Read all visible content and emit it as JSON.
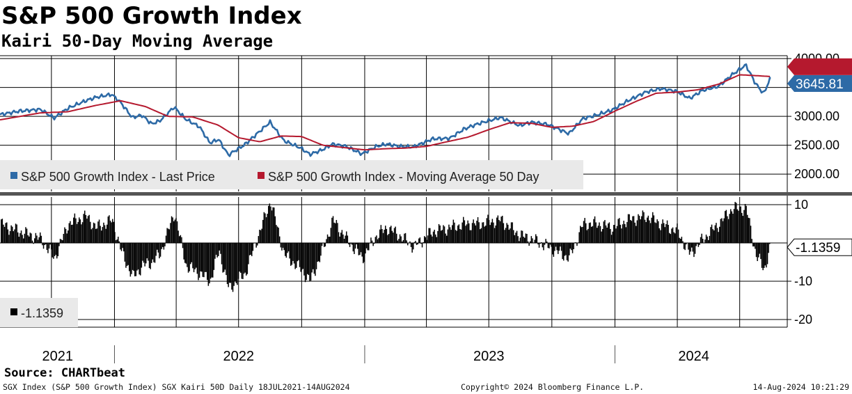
{
  "header": {
    "title": "S&P 500 Growth Index",
    "subtitle": "Kairi 50-Day Moving Average"
  },
  "footer": {
    "source": "Source: CHARTbeat",
    "left": "SGX Index (S&P 500 Growth Index) SGX Kairi 50D  Daily 18JUL2021-14AUG2024",
    "center": "Copyright© 2024 Bloomberg Finance L.P.",
    "right": "14-Aug-2024 10:21:29"
  },
  "colors": {
    "price": "#2d6aa6",
    "moving_average": "#b5192e",
    "kairi": "#000000",
    "legend_bg": "#e9e9e9",
    "separator": "#555555"
  },
  "chart_data": [
    {
      "type": "line",
      "panel": "price",
      "x_axis": {
        "type": "date",
        "range": [
          "2021-07-18",
          "2024-08-14"
        ],
        "tick_labels": [
          "2021",
          "2022",
          "2023",
          "2024"
        ]
      },
      "ylim": [
        1700,
        4050
      ],
      "yticks": [
        2000,
        2500,
        3000,
        3500,
        4000
      ],
      "ytick_labels": [
        "2000.00",
        "2500.00",
        "3000.00",
        "3500.00",
        "4000.00"
      ],
      "grid": true,
      "legend_position": "bottom-left",
      "last_value_label": "3645.81",
      "series": [
        {
          "name": "S&P 500 Growth Index - Last Price",
          "color": "#2d6aa6",
          "x": [
            "2021-07-18",
            "2021-08-15",
            "2021-09-15",
            "2021-10-05",
            "2021-10-25",
            "2021-11-20",
            "2021-12-05",
            "2021-12-28",
            "2022-01-10",
            "2022-01-27",
            "2022-02-10",
            "2022-02-24",
            "2022-03-08",
            "2022-03-29",
            "2022-04-15",
            "2022-05-05",
            "2022-05-20",
            "2022-06-02",
            "2022-06-16",
            "2022-07-10",
            "2022-08-16",
            "2022-09-05",
            "2022-09-30",
            "2022-10-13",
            "2022-10-31",
            "2022-11-15",
            "2022-12-05",
            "2022-12-28",
            "2023-01-18",
            "2023-02-02",
            "2023-02-20",
            "2023-03-13",
            "2023-04-10",
            "2023-05-05",
            "2023-05-26",
            "2023-06-15",
            "2023-07-18",
            "2023-08-15",
            "2023-09-01",
            "2023-09-25",
            "2023-10-26",
            "2023-11-15",
            "2023-12-05",
            "2023-12-28",
            "2024-01-20",
            "2024-02-15",
            "2024-03-08",
            "2024-04-01",
            "2024-04-19",
            "2024-05-08",
            "2024-05-31",
            "2024-06-20",
            "2024-07-10",
            "2024-07-24",
            "2024-08-05",
            "2024-08-14"
          ],
          "y": [
            3030,
            3090,
            3120,
            2970,
            3140,
            3270,
            3330,
            3380,
            3240,
            2980,
            3020,
            2870,
            2920,
            3160,
            2950,
            2820,
            2540,
            2600,
            2330,
            2510,
            2900,
            2580,
            2450,
            2340,
            2420,
            2520,
            2480,
            2350,
            2480,
            2520,
            2480,
            2470,
            2610,
            2620,
            2780,
            2870,
            2980,
            2840,
            2900,
            2860,
            2700,
            2960,
            3020,
            3110,
            3270,
            3420,
            3480,
            3430,
            3310,
            3450,
            3520,
            3720,
            3890,
            3570,
            3390,
            3645.81
          ]
        },
        {
          "name": "S&P 500 Growth Index - Moving Average 50 Day",
          "color": "#b5192e",
          "x": [
            "2021-07-18",
            "2021-09-15",
            "2021-10-25",
            "2021-12-05",
            "2022-01-10",
            "2022-02-15",
            "2022-03-20",
            "2022-04-25",
            "2022-06-01",
            "2022-07-01",
            "2022-08-01",
            "2022-09-01",
            "2022-10-01",
            "2022-11-01",
            "2022-12-01",
            "2023-01-01",
            "2023-02-01",
            "2023-03-01",
            "2023-04-01",
            "2023-05-01",
            "2023-06-01",
            "2023-07-01",
            "2023-08-01",
            "2023-09-01",
            "2023-10-01",
            "2023-11-01",
            "2023-12-01",
            "2024-01-01",
            "2024-02-01",
            "2024-03-01",
            "2024-04-01",
            "2024-05-01",
            "2024-06-01",
            "2024-07-01",
            "2024-08-01",
            "2024-08-14"
          ],
          "y": [
            2940,
            3060,
            3080,
            3190,
            3270,
            3170,
            3000,
            2990,
            2850,
            2630,
            2560,
            2660,
            2650,
            2500,
            2460,
            2420,
            2440,
            2450,
            2480,
            2560,
            2640,
            2770,
            2890,
            2880,
            2810,
            2830,
            2910,
            3090,
            3260,
            3400,
            3420,
            3460,
            3560,
            3720,
            3700,
            3690
          ]
        }
      ]
    },
    {
      "type": "bar",
      "panel": "kairi",
      "x_axis": {
        "type": "date",
        "range": [
          "2021-07-18",
          "2024-08-14"
        ],
        "tick_labels": [
          "2021",
          "2022",
          "2023",
          "2024"
        ]
      },
      "ylim": [
        -22,
        12
      ],
      "yticks": [
        10,
        -10,
        -20
      ],
      "ytick_labels": [
        "10",
        "-10",
        "-20"
      ],
      "grid": true,
      "legend_position": "bottom-left",
      "last_value_label": "-1.1359",
      "series": [
        {
          "name": "-1.1359",
          "color": "#000000",
          "x": [
            "2021-07-18",
            "2021-08-15",
            "2021-09-15",
            "2021-10-05",
            "2021-10-25",
            "2021-11-20",
            "2021-12-05",
            "2021-12-28",
            "2022-01-10",
            "2022-01-27",
            "2022-02-10",
            "2022-02-24",
            "2022-03-08",
            "2022-03-29",
            "2022-04-15",
            "2022-05-05",
            "2022-05-20",
            "2022-06-02",
            "2022-06-16",
            "2022-07-10",
            "2022-08-16",
            "2022-09-05",
            "2022-09-30",
            "2022-10-13",
            "2022-10-31",
            "2022-11-15",
            "2022-12-05",
            "2022-12-28",
            "2023-01-18",
            "2023-02-02",
            "2023-02-20",
            "2023-03-13",
            "2023-04-10",
            "2023-05-05",
            "2023-05-26",
            "2023-06-15",
            "2023-07-18",
            "2023-08-15",
            "2023-09-01",
            "2023-09-25",
            "2023-10-26",
            "2023-11-15",
            "2023-12-05",
            "2023-12-28",
            "2024-01-20",
            "2024-02-15",
            "2024-03-08",
            "2024-04-01",
            "2024-04-19",
            "2024-05-08",
            "2024-05-31",
            "2024-06-20",
            "2024-07-10",
            "2024-07-24",
            "2024-08-05",
            "2024-08-14"
          ],
          "y": [
            5,
            3,
            1,
            -4,
            5,
            7,
            4,
            6,
            -2,
            -9,
            -6,
            -5,
            -3,
            8,
            -6,
            -8,
            -10,
            -2,
            -12,
            -8,
            11,
            -3,
            -7,
            -10,
            -2,
            6,
            1,
            -4,
            2,
            4,
            2,
            -1,
            3,
            4,
            5,
            5,
            6,
            2,
            1,
            -1,
            -4,
            5,
            5,
            4,
            6,
            7,
            5,
            3,
            -3,
            1,
            5,
            9,
            9,
            -3,
            -7,
            -1.1359
          ]
        }
      ]
    }
  ]
}
